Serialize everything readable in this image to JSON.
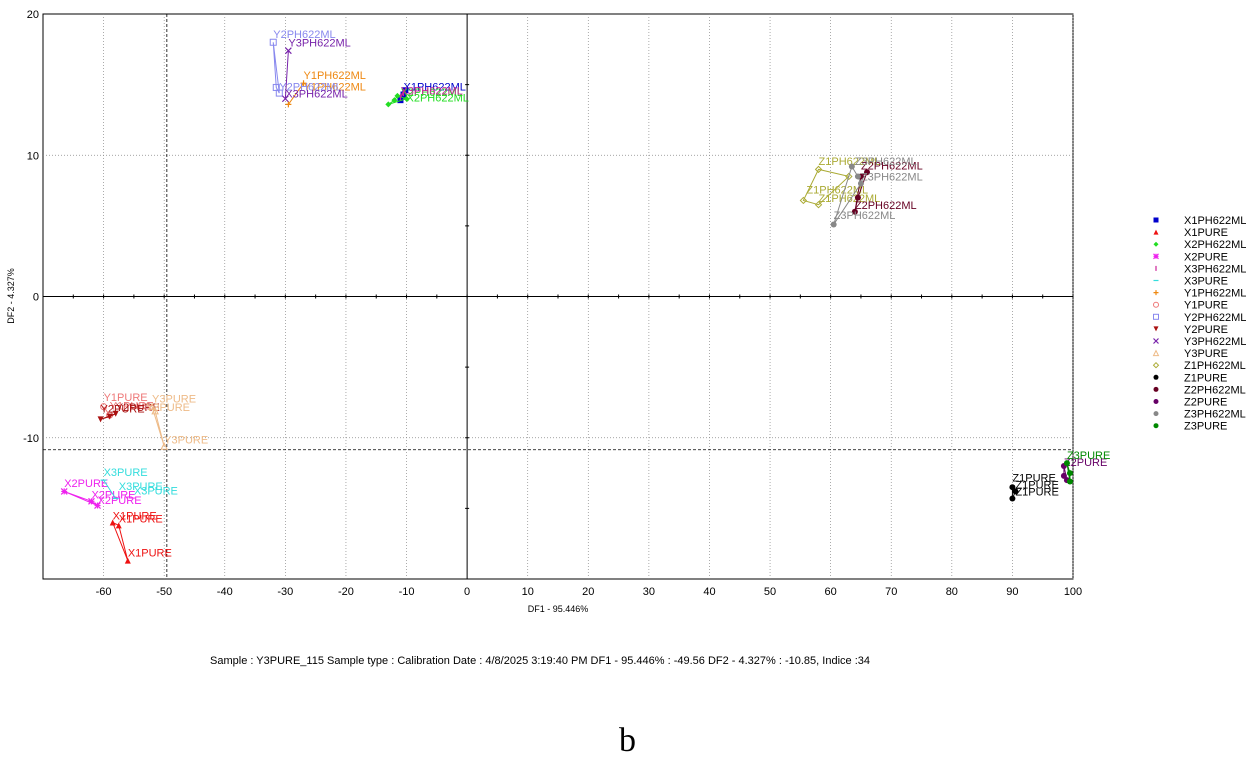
{
  "chart_data": {
    "type": "scatter",
    "xlabel": "DF1 - 95.446%",
    "ylabel": "DF2 - 4.327%",
    "xlim": [
      -70,
      100
    ],
    "ylim": [
      -20,
      20
    ],
    "xticks": [
      -60,
      -50,
      -40,
      -30,
      -20,
      -10,
      0,
      10,
      20,
      30,
      40,
      50,
      60,
      70,
      80,
      90,
      100
    ],
    "yticks": [
      -10,
      0,
      10,
      20
    ],
    "grid": "dotted at major ticks",
    "crosshair": {
      "x": -49.56,
      "y": -10.85
    },
    "legend_position": "right",
    "series": [
      {
        "name": "X1PH622ML",
        "color": "#0000cc",
        "marker": "square",
        "points": [
          [
            -10.5,
            14.3
          ],
          [
            -11,
            13.9
          ],
          [
            -10.2,
            14.6
          ]
        ],
        "labels": [
          [
            -10.5,
            14.6,
            "X1PH622ML"
          ]
        ]
      },
      {
        "name": "X1PURE",
        "color": "#ee1111",
        "marker": "triangle",
        "points": [
          [
            -58.5,
            -16.0
          ],
          [
            -57.5,
            -16.2
          ],
          [
            -56,
            -18.7
          ]
        ],
        "labels": [
          [
            -58.5,
            -15.8,
            "X1PURE"
          ],
          [
            -57.5,
            -16.0,
            "X1PURE"
          ],
          [
            -56,
            -18.4,
            "X1PURE"
          ]
        ]
      },
      {
        "name": "X2PH622ML",
        "color": "#22dd22",
        "marker": "diamond",
        "points": [
          [
            -13,
            13.6
          ],
          [
            -12,
            13.9
          ],
          [
            -11.5,
            14.2
          ],
          [
            -10,
            14.0
          ]
        ],
        "labels": [
          [
            -11,
            14.2,
            "X2PH622ML"
          ],
          [
            -10,
            13.8,
            "X2PH622ML"
          ]
        ]
      },
      {
        "name": "X2PURE",
        "color": "#ee22ee",
        "marker": "star",
        "points": [
          [
            -66.5,
            -13.8
          ],
          [
            -62,
            -14.5
          ],
          [
            -61,
            -14.8
          ]
        ],
        "labels": [
          [
            -66.5,
            -13.5,
            "X2PURE"
          ],
          [
            -62,
            -14.3,
            "X2PURE"
          ],
          [
            -61,
            -14.7,
            "X2PURE"
          ]
        ]
      },
      {
        "name": "X3PH622ML",
        "color": "#cc2299",
        "marker": "bar",
        "points": [
          [
            -11,
            14.1
          ],
          [
            -10.5,
            14.4
          ]
        ],
        "labels": [
          [
            -11,
            14.3,
            "X3PH622ML"
          ]
        ]
      },
      {
        "name": "X3PURE",
        "color": "#33dddd",
        "marker": "dash",
        "points": [
          [
            -60,
            -13.0
          ],
          [
            -58,
            -14.3
          ]
        ],
        "labels": [
          [
            -60,
            -12.7,
            "X3PURE"
          ],
          [
            -57.5,
            -13.7,
            "X3PURE"
          ],
          [
            -55,
            -14.0,
            "X3PURE"
          ]
        ]
      },
      {
        "name": "Y1PH622ML",
        "color": "#ee8811",
        "marker": "plus",
        "points": [
          [
            -27,
            15.1
          ],
          [
            -29.5,
            13.6
          ]
        ],
        "labels": [
          [
            -27,
            15.4,
            "Y1PH622ML"
          ],
          [
            -27,
            14.6,
            "Y1PH622ML"
          ]
        ]
      },
      {
        "name": "Y1PURE",
        "color": "#ee7777",
        "marker": "circle-open",
        "points": [
          [
            -60,
            -7.8
          ],
          [
            -59,
            -8.4
          ]
        ],
        "labels": [
          [
            -60,
            -7.4,
            "Y1PURE"
          ],
          [
            -59,
            -8.0,
            "Y1PURE"
          ]
        ]
      },
      {
        "name": "Y2PH622ML",
        "color": "#8888ee",
        "marker": "square-open",
        "points": [
          [
            -32,
            18.0
          ],
          [
            -31,
            14.4
          ],
          [
            -31.5,
            14.8
          ]
        ],
        "labels": [
          [
            -32,
            18.3,
            "Y2PH622ML"
          ],
          [
            -31,
            14.6,
            "Y2PH622ML"
          ]
        ]
      },
      {
        "name": "Y2PURE",
        "color": "#aa1111",
        "marker": "triangle-down",
        "points": [
          [
            -60.5,
            -8.7
          ],
          [
            -59,
            -8.5
          ],
          [
            -58,
            -8.3
          ]
        ],
        "labels": [
          [
            -60.5,
            -8.2,
            "Y2PURE"
          ],
          [
            -58,
            -8.1,
            "Y2PURE"
          ]
        ]
      },
      {
        "name": "Y3PH622ML",
        "color": "#7722aa",
        "marker": "x",
        "points": [
          [
            -29.5,
            17.4
          ],
          [
            -30,
            14.0
          ]
        ],
        "labels": [
          [
            -29.5,
            17.7,
            "Y3PH622ML"
          ],
          [
            -30,
            14.1,
            "X3PH622ML"
          ]
        ]
      },
      {
        "name": "Y3PURE",
        "color": "#eebb88",
        "marker": "triangle-open",
        "points": [
          [
            -52,
            -7.8
          ],
          [
            -50,
            -10.6
          ],
          [
            -51.5,
            -8.1
          ]
        ],
        "labels": [
          [
            -52,
            -7.5,
            "Y3PURE"
          ],
          [
            -53,
            -8.1,
            "Y3PURE"
          ],
          [
            -50,
            -10.4,
            "Y3PURE"
          ]
        ]
      },
      {
        "name": "Z1PH622ML",
        "color": "#aaaa33",
        "marker": "diamond-open",
        "points": [
          [
            58,
            9.0
          ],
          [
            55.5,
            6.8
          ],
          [
            58,
            6.5
          ],
          [
            63,
            8.5
          ]
        ],
        "labels": [
          [
            58,
            9.3,
            "Z1PH622ML"
          ],
          [
            56,
            7.3,
            "Z1PH622ML"
          ],
          [
            58,
            6.7,
            "Z1PH622ML"
          ]
        ]
      },
      {
        "name": "Z1PURE",
        "color": "#000000",
        "marker": "circle",
        "points": [
          [
            90,
            -13.5
          ],
          [
            90.5,
            -13.8
          ],
          [
            90,
            -14.3
          ]
        ],
        "labels": [
          [
            90,
            -13.1,
            "Z1PURE"
          ],
          [
            90.5,
            -13.6,
            "Z1PURE"
          ],
          [
            90.5,
            -14.1,
            "Z1PURE"
          ]
        ]
      },
      {
        "name": "Z2PH622ML",
        "color": "#660022",
        "marker": "circle",
        "points": [
          [
            64,
            6.0
          ],
          [
            65,
            8.5
          ],
          [
            66,
            8.8
          ],
          [
            64.5,
            7.0
          ]
        ],
        "labels": [
          [
            65,
            9.0,
            "Z2PH622ML"
          ],
          [
            64,
            6.2,
            "Z2PH622ML"
          ]
        ]
      },
      {
        "name": "Z2PURE",
        "color": "#660066",
        "marker": "circle",
        "points": [
          [
            98.5,
            -12.7
          ],
          [
            99,
            -13.0
          ],
          [
            98.5,
            -12.0
          ]
        ],
        "labels": [
          [
            98.5,
            -12.0,
            "Z2PURE"
          ]
        ]
      },
      {
        "name": "Z3PH622ML",
        "color": "#888888",
        "marker": "circle",
        "points": [
          [
            60.5,
            5.1
          ],
          [
            63.5,
            9.2
          ],
          [
            64.5,
            8.5
          ],
          [
            65,
            8.0
          ]
        ],
        "labels": [
          [
            60.5,
            5.5,
            "Z3PH622ML"
          ],
          [
            64,
            9.3,
            "Z3PH622ML"
          ],
          [
            65,
            8.2,
            "Z3PH622ML"
          ]
        ]
      },
      {
        "name": "Z3PURE",
        "color": "#008800",
        "marker": "circle",
        "points": [
          [
            99.5,
            -12.5
          ],
          [
            99.5,
            -13.1
          ],
          [
            99,
            -11.8
          ]
        ],
        "labels": [
          [
            99,
            -11.5,
            "Z3PURE"
          ]
        ]
      }
    ]
  },
  "sample_info": "Sample : Y3PURE_115    Sample type : Calibration    Date : 4/8/2025 3:19:40 PM    DF1 - 95.446% : -49.56    DF2 - 4.327% : -10.85, Indice :34",
  "panel_label": "b"
}
